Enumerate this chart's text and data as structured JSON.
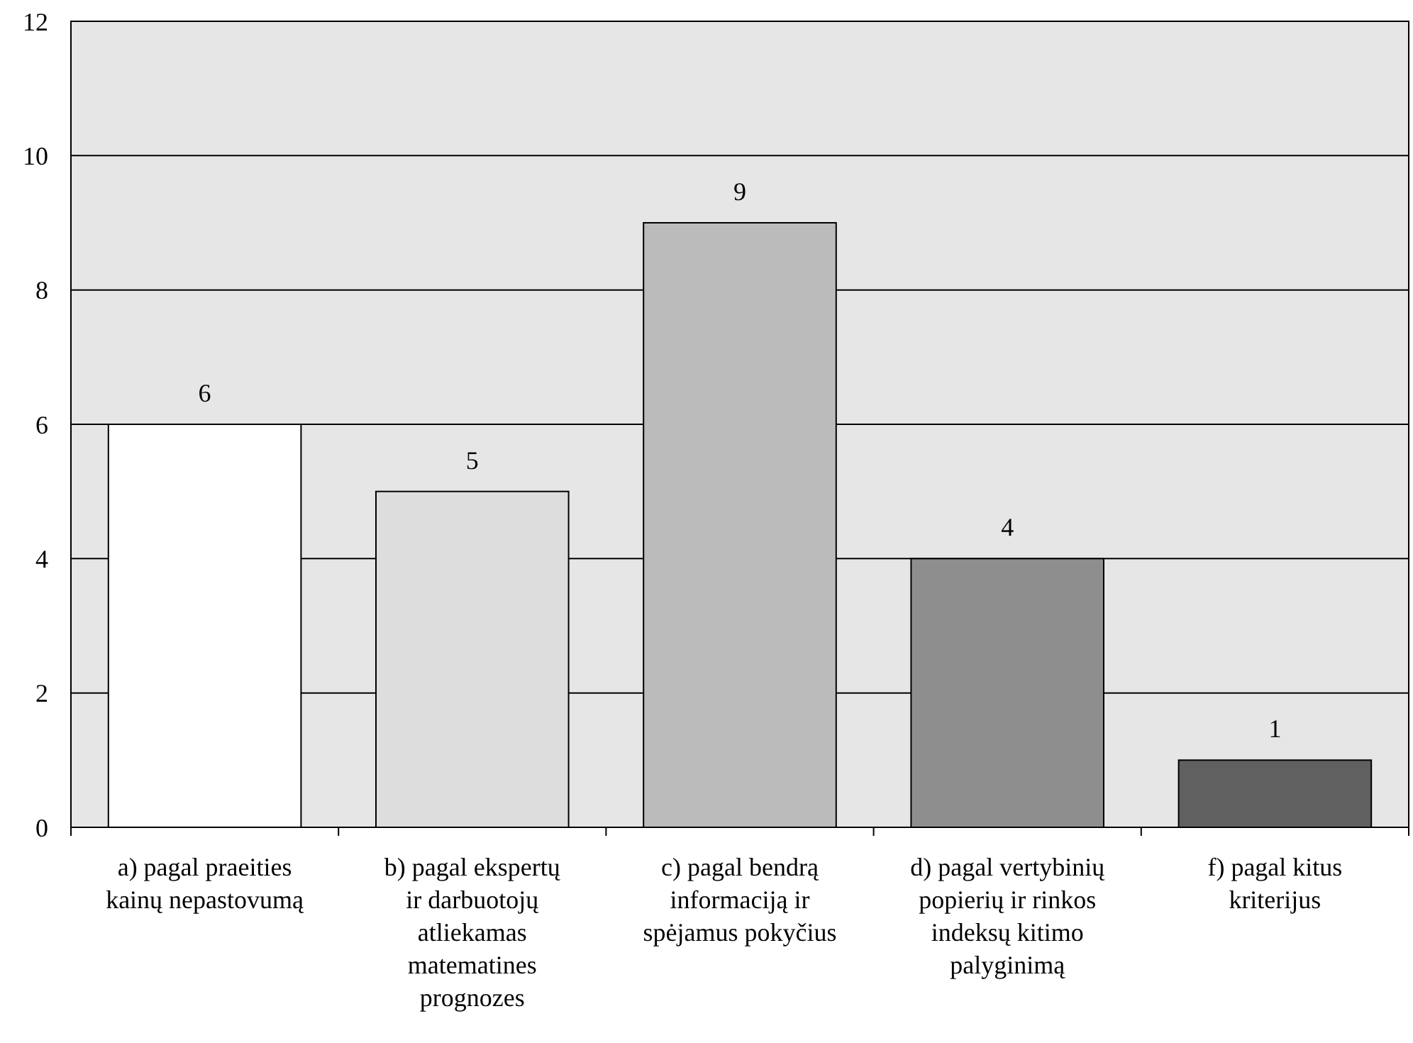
{
  "chart_data": {
    "type": "bar",
    "categories": [
      "a) pagal praeities\nkainų nepastovumą",
      "b) pagal ekspertų\nir darbuotojų\natliekamas\nmatematines\nprognozes",
      "c) pagal bendrą\ninformaciją ir\nspėjamus pokyčius",
      "d) pagal vertybinių\npopierių ir rinkos\nindeksų kitimo\npalyginimą",
      "f) pagal kitus\nkriterijus"
    ],
    "values": [
      6,
      5,
      9,
      4,
      1
    ],
    "colors": [
      "#ffffff",
      "#dddddd",
      "#bbbbbb",
      "#8e8e8e",
      "#606060"
    ],
    "ylim": [
      0,
      12
    ],
    "yticks": [
      0,
      2,
      4,
      6,
      8,
      10,
      12
    ],
    "grid": "y",
    "data_labels": true
  }
}
